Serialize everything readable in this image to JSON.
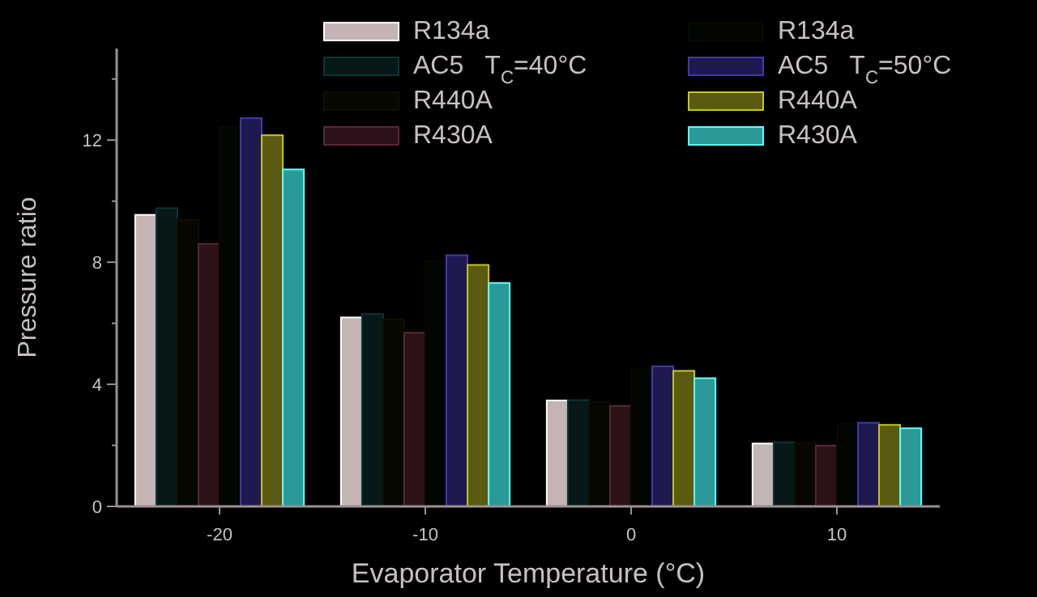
{
  "chart_data": {
    "type": "bar",
    "xlabel": "Evaporator Temperature (°C)",
    "ylabel": "Pressure ratio",
    "categories": [
      "-20",
      "-10",
      "0",
      "10"
    ],
    "ylim": [
      0,
      15
    ],
    "yticks": [
      0,
      {
        "value": 2,
        "label": null
      },
      4,
      {
        "value": 6,
        "label": null
      },
      8,
      {
        "value": 10,
        "label": null
      },
      12,
      {
        "value": 14,
        "label": null
      }
    ],
    "legend": "top right",
    "grid": false,
    "series": [
      {
        "name": "R134a",
        "color": "#c4b4b4",
        "values": [
          9.55,
          6.19,
          3.47,
          2.06
        ]
      },
      {
        "name": "AC5   T$_{C}$=40°C",
        "color": "#061818",
        "values": [
          9.77,
          6.3,
          3.48,
          2.1
        ]
      },
      {
        "name": "R440A",
        "color": "#070700",
        "values": [
          9.39,
          6.12,
          3.43,
          2.08
        ]
      },
      {
        "name": "R430A",
        "color": "#2a1218",
        "values": [
          8.6,
          5.69,
          3.29,
          1.99
        ]
      },
      {
        "name": "R134a",
        "color": "#020500",
        "values": [
          12.43,
          8.05,
          4.5,
          2.7
        ]
      },
      {
        "name": "AC5   T$_{C}$=50°C",
        "color": "#1e1a50",
        "values": [
          12.72,
          8.23,
          4.59,
          2.74
        ]
      },
      {
        "name": "R440A",
        "color": "#5a5a10",
        "values": [
          12.16,
          7.91,
          4.44,
          2.67
        ]
      },
      {
        "name": "R430A",
        "color": "#2a9a98",
        "values": [
          11.04,
          7.32,
          4.2,
          2.56
        ]
      }
    ]
  }
}
